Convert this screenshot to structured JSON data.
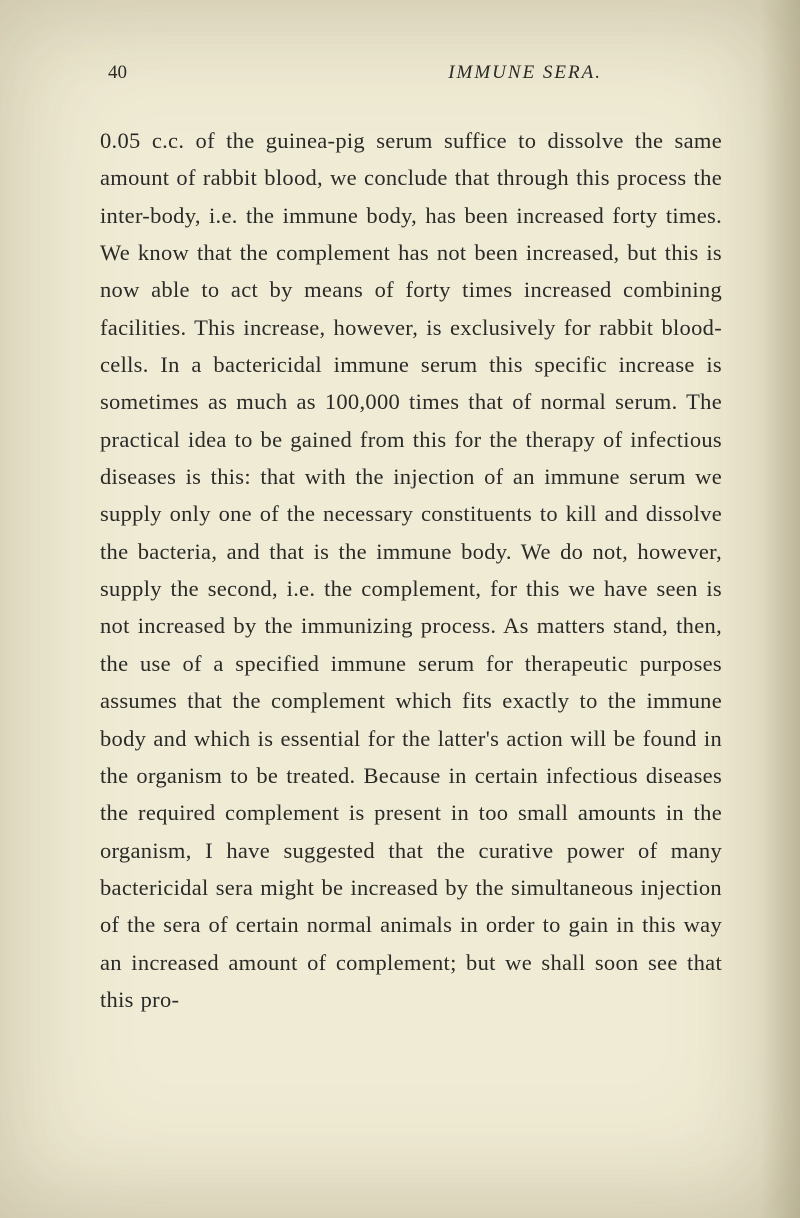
{
  "page": {
    "number": "40",
    "title": "IMMUNE SERA.",
    "background_color": "#f0ebd4",
    "text_color": "#2a2a28",
    "body_fontsize": 22.5,
    "header_fontsize": 19,
    "line_height": 1.66
  },
  "paragraph": {
    "text": "0.05 c.c. of the guinea-pig serum suffice to dissolve the same amount of rabbit blood, we conclude that through this process the inter-body, i.e. the immune body, has been increased forty times. We know that the complement has not been increased, but this is now able to act by means of forty times increased combining facilities. This increase, how­ever, is exclusively for rabbit blood-cells. In a bactericidal immune serum this specific increase is sometimes as much as 100,000 times that of normal serum. The practical idea to be gained from this for the therapy of infectious diseases is this: that with the injection of an immune serum we supply only one of the necessary constituents to kill and dissolve the bacteria, and that is the immune body. We do not, however, supply the second, i.e. the complement, for this we have seen is not increased by the immunizing process. As matters stand, then, the use of a specified immune serum for thera­peutic purposes assumes that the complement which fits exactly to the immune body and which is essential for the latter's action will be found in the organism to be treated. Because in certain infec­tious diseases the required complement is present in too small amounts in the organism, I have sug­gested that the curative power of many bacteri­cidal sera might be increased by the simultaneous injection of the sera of certain normal animals in order to gain in this way an increased amount of complement; but we shall soon see that this pro-"
  }
}
